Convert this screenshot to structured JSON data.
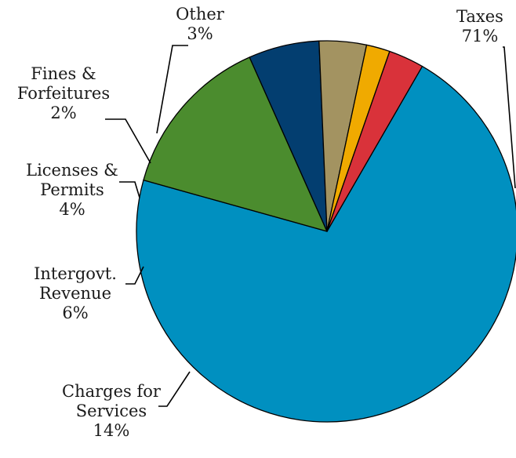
{
  "chart_data": {
    "type": "pie",
    "title": "",
    "start_angle_deg": -60,
    "direction": "clockwise",
    "slices": [
      {
        "name": "Taxes",
        "value": 71,
        "label_lines": [
          "Taxes",
          "71%"
        ],
        "color": "#0090c0"
      },
      {
        "name": "Charges for Services",
        "value": 14,
        "label_lines": [
          "Charges for",
          "Services",
          "14%"
        ],
        "color": "#4b8c2e"
      },
      {
        "name": "Intergovt. Revenue",
        "value": 6,
        "label_lines": [
          "Intergovt.",
          "Revenue",
          "6%"
        ],
        "color": "#033e70"
      },
      {
        "name": "Licenses & Permits",
        "value": 4,
        "label_lines": [
          "Licenses &",
          "Permits",
          "4%"
        ],
        "color": "#a39361"
      },
      {
        "name": "Fines & Forfeitures",
        "value": 2,
        "label_lines": [
          "Fines &",
          "Forfeitures",
          "2%"
        ],
        "color": "#f0aa00"
      },
      {
        "name": "Other",
        "value": 3,
        "label_lines": [
          "Other",
          "3%"
        ],
        "color": "#d9323a"
      }
    ]
  }
}
